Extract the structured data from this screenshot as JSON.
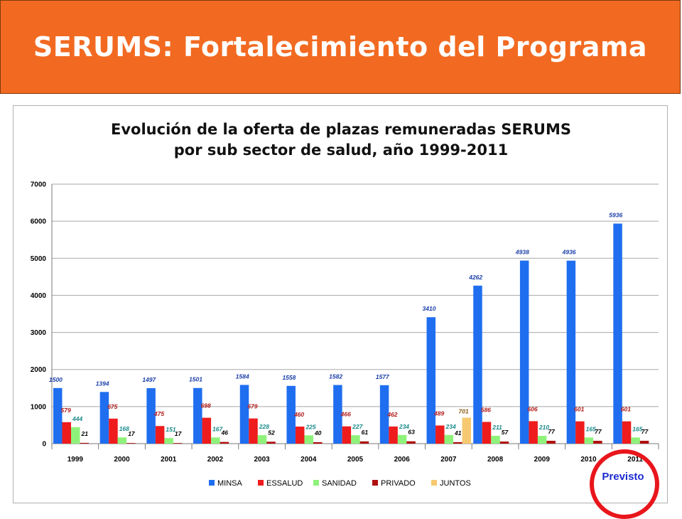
{
  "header": {
    "title": "SERUMS: Fortalecimiento del Programa"
  },
  "note": {
    "text": "Previsto"
  },
  "chart_data": {
    "type": "bar",
    "title_line1": "Evolución de la oferta de plazas remuneradas SERUMS",
    "title_line2": "por sub sector de salud, año 1999-2011",
    "categories": [
      "1999",
      "2000",
      "2001",
      "2002",
      "2003",
      "2004",
      "2005",
      "2006",
      "2007",
      "2008",
      "2009",
      "2010",
      "2011"
    ],
    "ylim": [
      0,
      7000
    ],
    "yticks": [
      0,
      1000,
      2000,
      3000,
      4000,
      5000,
      6000,
      7000
    ],
    "grid": true,
    "legend_position": "bottom",
    "series": [
      {
        "name": "MINSA",
        "color": "#1f6ef0",
        "label_color": "#1a3fa8",
        "values": [
          1500,
          1394,
          1497,
          1501,
          1584,
          1558,
          1582,
          1577,
          3410,
          4262,
          4938,
          4936,
          5936
        ]
      },
      {
        "name": "ESSALUD",
        "color": "#ee1c1c",
        "label_color": "#b01818",
        "values": [
          579,
          675,
          475,
          698,
          679,
          460,
          466,
          462,
          489,
          586,
          606,
          601,
          601
        ]
      },
      {
        "name": "SANIDAD",
        "color": "#8ef27a",
        "label_color": "#1a8a8a",
        "values": [
          444,
          168,
          151,
          167,
          228,
          225,
          227,
          234,
          234,
          211,
          210,
          165,
          165
        ]
      },
      {
        "name": "PRIVADO",
        "color": "#b01010",
        "label_color": "#000000",
        "values": [
          21,
          17,
          17,
          46,
          52,
          40,
          61,
          63,
          41,
          57,
          77,
          77,
          77
        ]
      },
      {
        "name": "JUNTOS",
        "color": "#f6c870",
        "label_color": "#8a5a10",
        "values": [
          null,
          null,
          null,
          null,
          null,
          null,
          null,
          null,
          701,
          null,
          null,
          null,
          null
        ]
      }
    ]
  }
}
